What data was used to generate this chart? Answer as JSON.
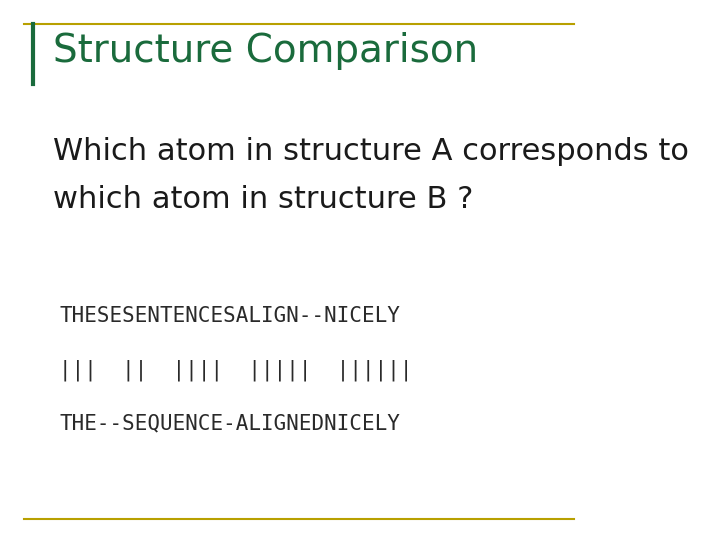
{
  "title": "Structure Comparison",
  "title_color": "#1a6b3c",
  "title_fontsize": 28,
  "body_text_line1": "Which atom in structure A corresponds to",
  "body_text_line2": "which atom in structure B ?",
  "body_fontsize": 22,
  "body_color": "#1a1a1a",
  "mono_line1": "THESESENTENCESALIGN--NICELY",
  "mono_line2": "|||  ||  ||||  |||||  ||||||",
  "mono_line3": "THE--SEQUENCE-ALIGNEDNICELY",
  "mono_fontsize": 15,
  "mono_color": "#2a2a2a",
  "border_color": "#b8a000",
  "left_bar_color": "#1a6b3c",
  "bg_color": "#ffffff"
}
